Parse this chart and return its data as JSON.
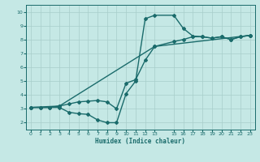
{
  "xlabel": "Humidex (Indice chaleur)",
  "bg_color": "#c5e8e5",
  "grid_color": "#a8ceca",
  "line_color": "#1a6b6b",
  "markersize": 2.0,
  "linewidth": 1.0,
  "xlim": [
    -0.5,
    23.5
  ],
  "ylim": [
    1.5,
    10.5
  ],
  "xticks": [
    0,
    1,
    2,
    3,
    4,
    5,
    6,
    7,
    8,
    9,
    10,
    11,
    12,
    13,
    15,
    16,
    17,
    18,
    19,
    20,
    21,
    22,
    23
  ],
  "yticks": [
    2,
    3,
    4,
    5,
    6,
    7,
    8,
    9,
    10
  ],
  "line1_x": [
    0,
    1,
    2,
    3,
    4,
    5,
    6,
    7,
    8,
    9,
    10,
    11,
    12,
    13,
    15,
    16,
    17,
    18,
    19,
    20,
    21,
    22,
    23
  ],
  "line1_y": [
    3.1,
    3.1,
    3.1,
    3.1,
    2.75,
    2.65,
    2.6,
    2.2,
    2.0,
    2.0,
    4.1,
    5.0,
    9.5,
    9.75,
    9.75,
    8.8,
    8.25,
    8.2,
    8.1,
    8.2,
    8.0,
    8.2,
    8.3
  ],
  "line2_x": [
    0,
    1,
    2,
    3,
    4,
    5,
    6,
    7,
    8,
    9,
    10,
    11,
    12,
    13,
    15,
    16,
    17,
    18,
    19,
    20,
    21,
    22,
    23
  ],
  "line2_y": [
    3.1,
    3.1,
    3.1,
    3.2,
    3.35,
    3.5,
    3.55,
    3.6,
    3.5,
    3.0,
    4.85,
    5.1,
    6.5,
    7.5,
    7.85,
    8.0,
    8.2,
    8.2,
    8.1,
    8.2,
    8.0,
    8.2,
    8.3
  ],
  "line3_x": [
    0,
    3,
    13,
    23
  ],
  "line3_y": [
    3.1,
    3.2,
    7.5,
    8.3
  ]
}
